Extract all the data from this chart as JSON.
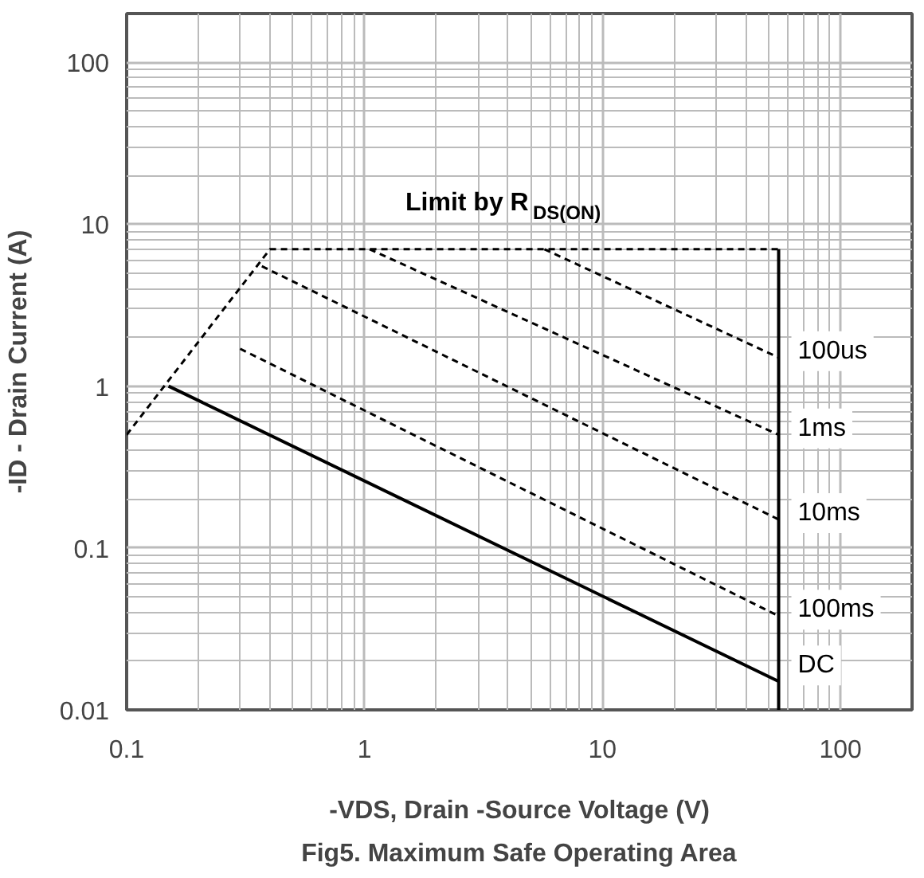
{
  "chart_data": {
    "type": "line",
    "title": "Fig5. Maximum Safe Operating Area",
    "xlabel": "-VDS, Drain -Source Voltage (V)",
    "ylabel": "-ID - Drain Current (A)",
    "log": "xy",
    "grid": true,
    "xlim": [
      0.1,
      200
    ],
    "ylim": [
      0.01,
      200
    ],
    "xticks": [
      0.1,
      1,
      10,
      100
    ],
    "yticks": [
      0.01,
      0.1,
      1,
      10,
      100
    ],
    "annotations": [
      "Limit by R$_{DS(ON)}$"
    ],
    "series": [
      {
        "color": "#000000",
        "line_style": "dashed",
        "x": [
          0.1,
          0.4,
          55
        ],
        "values": [
          0.5,
          7,
          7
        ]
      },
      {
        "color": "#000000",
        "line_style": "solid",
        "x": [
          55,
          55
        ],
        "values": [
          0.01,
          7
        ]
      },
      {
        "name": "100us",
        "color": "#000000",
        "line_style": "dashed",
        "x": [
          5.7,
          55
        ],
        "values": [
          7,
          1.5
        ]
      },
      {
        "name": "1ms",
        "color": "#000000",
        "line_style": "dashed",
        "x": [
          1.05,
          55
        ],
        "values": [
          7,
          0.5
        ]
      },
      {
        "name": "10ms",
        "color": "#000000",
        "line_style": "dashed",
        "x": [
          0.37,
          55
        ],
        "values": [
          5.5,
          0.15
        ]
      },
      {
        "name": "100ms",
        "color": "#000000",
        "line_style": "dashed",
        "x": [
          0.3,
          55
        ],
        "values": [
          1.7,
          0.038
        ]
      },
      {
        "name": "DC",
        "color": "#000000",
        "line_style": "solid",
        "x": [
          0.15,
          55
        ],
        "values": [
          1.0,
          0.015
        ]
      }
    ]
  }
}
